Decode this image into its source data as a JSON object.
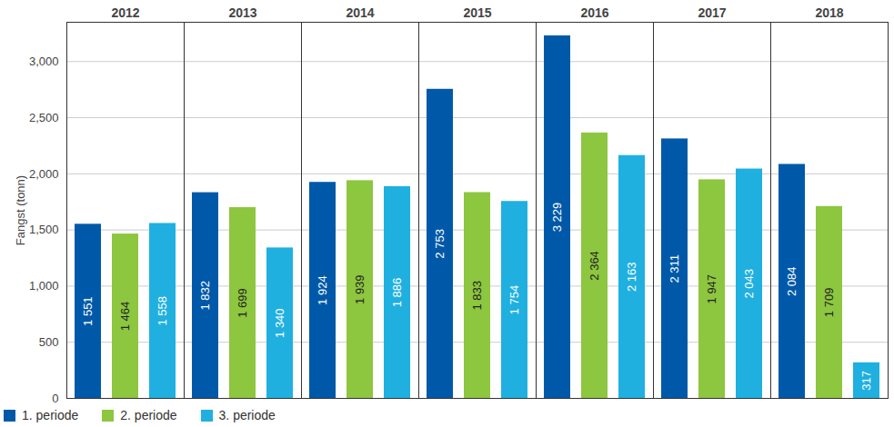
{
  "chart_data": {
    "type": "bar",
    "categories": [
      "2012",
      "2013",
      "2014",
      "2015",
      "2016",
      "2017",
      "2018"
    ],
    "series": [
      {
        "name": "1. periode",
        "color": "#0059a8",
        "values": [
          1551,
          1832,
          1924,
          2753,
          3229,
          2311,
          2084
        ],
        "value_labels": [
          "1 551",
          "1 832",
          "1 924",
          "2 753",
          "3 229",
          "2 311",
          "2 084"
        ]
      },
      {
        "name": "2. periode",
        "color": "#8dc63f",
        "values": [
          1464,
          1699,
          1939,
          1833,
          2364,
          1947,
          1709
        ],
        "value_labels": [
          "1 464",
          "1 699",
          "1 939",
          "1 833",
          "2 364",
          "1 947",
          "1 709"
        ]
      },
      {
        "name": "3. periode",
        "color": "#1fb0e0",
        "values": [
          1558,
          1340,
          1886,
          1754,
          2163,
          2043,
          317
        ],
        "value_labels": [
          "1 558",
          "1 340",
          "1 886",
          "1 754",
          "2 163",
          "2 043",
          "317"
        ]
      }
    ],
    "ylabel": "Fangst (tonn)",
    "ylim": [
      0,
      3350
    ],
    "yticks": [
      0,
      500,
      1000,
      1500,
      2000,
      2500,
      3000
    ],
    "grid": true,
    "legend": "bottom",
    "data_labels": true
  }
}
